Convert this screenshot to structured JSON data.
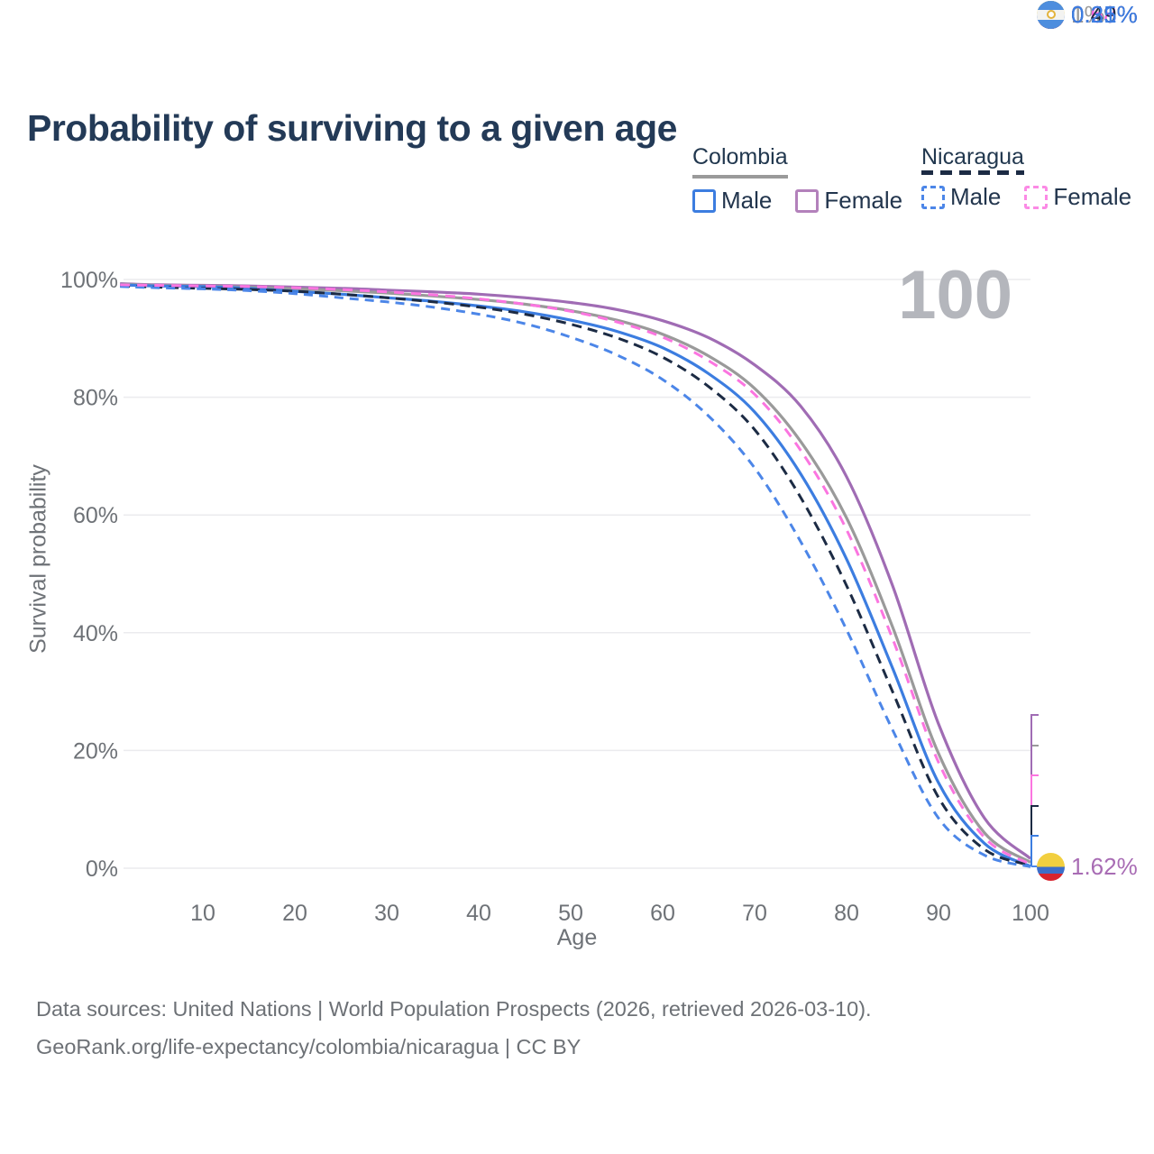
{
  "page": {
    "title": "Probability of surviving to a given age",
    "watermark_age": "100"
  },
  "legend": {
    "groups": [
      {
        "country": "Colombia",
        "line_style": "solid",
        "line_color": "#9a9a9a",
        "items": [
          {
            "label": "Male",
            "color": "#3c7de0"
          },
          {
            "label": "Female",
            "color": "#b381bb"
          }
        ]
      },
      {
        "country": "Nicaragua",
        "line_style": "dashed",
        "line_color": "#1c2b44",
        "items": [
          {
            "label": "Male",
            "color": "#4c86e8"
          },
          {
            "label": "Female",
            "color": "#fb8ae5"
          }
        ]
      }
    ]
  },
  "axes": {
    "y_title": "Survival probability",
    "x_title": "Age",
    "y_ticks": [
      {
        "label": "0%",
        "value": 0
      },
      {
        "label": "20%",
        "value": 20
      },
      {
        "label": "40%",
        "value": 40
      },
      {
        "label": "60%",
        "value": 60
      },
      {
        "label": "80%",
        "value": 80
      },
      {
        "label": "100%",
        "value": 100
      }
    ],
    "x_ticks": [
      10,
      20,
      30,
      40,
      50,
      60,
      70,
      80,
      90,
      100
    ]
  },
  "chart_data": {
    "type": "line",
    "title": "Probability of surviving to a given age",
    "xlabel": "Age",
    "ylabel": "Survival probability",
    "xlim": [
      0,
      100
    ],
    "ylim": [
      0,
      100
    ],
    "grid": "horizontal",
    "legend_position": "top-right",
    "x_ages": [
      1,
      5,
      10,
      15,
      20,
      25,
      30,
      35,
      40,
      45,
      50,
      55,
      60,
      65,
      70,
      75,
      80,
      85,
      90,
      95,
      100
    ],
    "series": [
      {
        "name": "Colombia Female",
        "country": "Colombia",
        "sex": "Female",
        "line": "solid",
        "color": "#a06cb4",
        "end_value_pct": 1.62,
        "values": [
          99.3,
          99.1,
          99.0,
          98.9,
          98.7,
          98.5,
          98.2,
          97.9,
          97.5,
          96.9,
          96.1,
          94.9,
          93.0,
          90.1,
          85.5,
          78.5,
          66.5,
          48.0,
          24.5,
          8.5,
          1.62
        ]
      },
      {
        "name": "Colombia Total",
        "country": "Colombia",
        "sex": "Both",
        "line": "solid",
        "color": "#9a9a9a",
        "end_value_pct": 1.0,
        "values": [
          99.2,
          99.0,
          98.9,
          98.7,
          98.4,
          98.1,
          97.7,
          97.2,
          96.6,
          95.8,
          94.7,
          93.1,
          90.7,
          87.0,
          81.5,
          72.5,
          59.5,
          41.0,
          19.5,
          6.0,
          1.0
        ]
      },
      {
        "name": "Colombia Male",
        "country": "Colombia",
        "sex": "Male",
        "line": "solid",
        "color": "#3c7de0",
        "end_value_pct": 0.31,
        "values": [
          99.1,
          98.9,
          98.8,
          98.5,
          98.0,
          97.5,
          96.9,
          96.3,
          95.5,
          94.5,
          93.1,
          91.2,
          88.4,
          84.0,
          77.5,
          67.0,
          52.5,
          34.0,
          14.5,
          4.2,
          0.31
        ]
      },
      {
        "name": "Nicaragua Total",
        "country": "Nicaragua",
        "sex": "Both",
        "line": "dashed",
        "color": "#1c2b44",
        "end_value_pct": 0.49,
        "values": [
          98.9,
          98.7,
          98.5,
          98.3,
          98.0,
          97.5,
          96.9,
          96.2,
          95.3,
          94.1,
          92.4,
          90.1,
          86.8,
          81.8,
          74.5,
          63.0,
          48.0,
          30.0,
          12.0,
          3.2,
          0.49
        ]
      },
      {
        "name": "Nicaragua Male",
        "country": "Nicaragua",
        "sex": "Male",
        "line": "dashed",
        "color": "#4c86e8",
        "end_value_pct": 0.25,
        "values": [
          98.8,
          98.6,
          98.4,
          98.1,
          97.6,
          96.9,
          96.2,
          95.3,
          94.1,
          92.5,
          90.2,
          87.2,
          83.0,
          76.8,
          68.0,
          55.5,
          40.5,
          23.5,
          8.5,
          2.2,
          0.25
        ]
      },
      {
        "name": "Nicaragua Female",
        "country": "Nicaragua",
        "sex": "Female",
        "line": "dashed",
        "color": "#fb75e0",
        "end_value_pct": 0.68,
        "values": [
          99.1,
          99.0,
          98.9,
          98.8,
          98.6,
          98.3,
          97.9,
          97.4,
          96.7,
          95.8,
          94.6,
          92.8,
          90.2,
          86.2,
          80.5,
          71.0,
          57.5,
          39.0,
          18.0,
          5.2,
          0.68
        ]
      }
    ]
  },
  "end_labels": [
    {
      "text": "1.62%",
      "series": "Colombia Female",
      "flag": "colombia",
      "color": "#a86cb4"
    },
    {
      "text": "1%",
      "series": "Colombia Total",
      "flag": "colombia",
      "color": "#9a9a9a"
    },
    {
      "text": "0.68%",
      "series": "Nicaragua Female",
      "flag": "nicaragua",
      "color": "#fb5fe0"
    },
    {
      "text": "0.49%",
      "series": "Nicaragua Total",
      "flag": "nicaragua",
      "color": "#1c2b44"
    },
    {
      "text": "0.31%",
      "series": "Colombia Male",
      "flag": "colombia",
      "color": "#3c7de0"
    },
    {
      "text": "0.25%",
      "series": "Nicaragua Male",
      "flag": "nicaragua",
      "color": "#3c7de0"
    }
  ],
  "footer": {
    "line1": "Data sources: United Nations | World Population Prospects (2026, retrieved 2026-03-10).",
    "line2": "GeoRank.org/life-expectancy/colombia/nicaragua | CC BY"
  }
}
